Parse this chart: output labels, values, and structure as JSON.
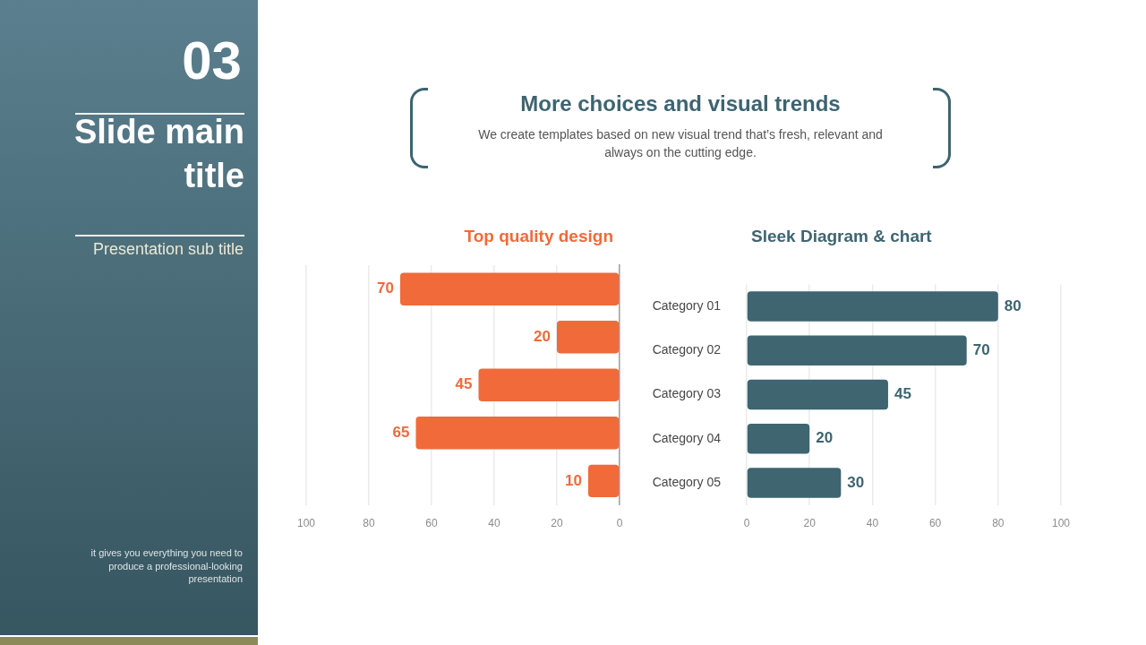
{
  "chart_data": [
    {
      "type": "other",
      "title": "Slide main title",
      "subtitle": "Presentation sub title",
      "annotations": [
        "03",
        "it gives you everything you need to produce a professional-looking presentation"
      ]
    },
    {
      "type": "other",
      "title": "More choices and visual trends",
      "subtitle": "We create templates based on new visual trend that’s fresh, relevant and always on the cutting edge."
    },
    {
      "type": "bar",
      "orientation": "horizontal",
      "title": "Top quality design",
      "categories": [
        null,
        null,
        null,
        null,
        null
      ],
      "values": [
        70,
        20,
        45,
        65,
        10
      ],
      "color": "#f06a3a",
      "xlim": [
        100,
        0
      ],
      "xticks": [
        100,
        80,
        60,
        40,
        20,
        0
      ],
      "grid": "x",
      "data_labels": true,
      "tick_labels": "x"
    },
    {
      "type": "bar",
      "orientation": "horizontal",
      "title": "Sleek Diagram & chart",
      "categories": [
        "Category 01",
        "Category 02",
        "Category 03",
        "Category 04",
        "Category 05"
      ],
      "values": [
        80,
        70,
        45,
        20,
        30
      ],
      "color": "#3e6570",
      "xlim": [
        0,
        100
      ],
      "xticks": [
        0,
        20,
        40,
        60,
        80,
        100
      ],
      "grid": "x",
      "data_labels": true
    }
  ]
}
